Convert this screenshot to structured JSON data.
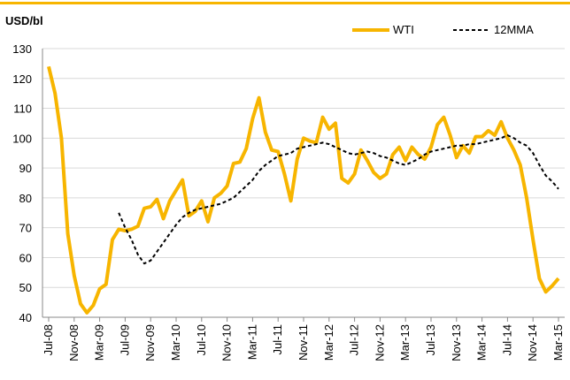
{
  "chart_data": {
    "type": "line",
    "y_label": "USD/bl",
    "categories": [
      "Jul-08",
      null,
      null,
      null,
      "Nov-08",
      null,
      null,
      null,
      "Mar-09",
      null,
      null,
      null,
      "Jul-09",
      null,
      null,
      null,
      "Nov-09",
      null,
      null,
      null,
      "Mar-10",
      null,
      null,
      null,
      "Jul-10",
      null,
      null,
      null,
      "Nov-10",
      null,
      null,
      null,
      "Mar-11",
      null,
      null,
      null,
      "Jul-11",
      null,
      null,
      null,
      "Nov-11",
      null,
      null,
      null,
      "Mar-12",
      null,
      null,
      null,
      "Jul-12",
      null,
      null,
      null,
      "Nov-12",
      null,
      null,
      null,
      "Mar-13",
      null,
      null,
      null,
      "Jul-13",
      null,
      null,
      null,
      "Nov-13",
      null,
      null,
      null,
      "Mar-14",
      null,
      null,
      null,
      "Jul-14",
      null,
      null,
      null,
      "Nov-14",
      null,
      null,
      null,
      "Mar-15"
    ],
    "series": [
      {
        "name": "WTI",
        "color": "#f7b500",
        "dash": false,
        "values": [
          124,
          115,
          100,
          68,
          54,
          44.5,
          41.5,
          44,
          49.5,
          51,
          66,
          69.5,
          69,
          69.5,
          70.5,
          76.5,
          77,
          79.5,
          73,
          79,
          82.5,
          86,
          74,
          75.5,
          79,
          72,
          80,
          81.5,
          84,
          91.5,
          92,
          96.5,
          106.5,
          113.5,
          102,
          96,
          95.5,
          88,
          79,
          93,
          100,
          99,
          98.5,
          107,
          103,
          105,
          86.5,
          85,
          88,
          96,
          92.5,
          88.5,
          86.5,
          88,
          94.5,
          97,
          92.5,
          97,
          94.5,
          93,
          97,
          104.5,
          107,
          101,
          93.5,
          97.5,
          95,
          100.5,
          100.5,
          102.5,
          101,
          105.5,
          100,
          96,
          91,
          80,
          66,
          53,
          48.5,
          50.5,
          53
        ]
      },
      {
        "name": "12MMA",
        "color": "#000000",
        "dash": true,
        "values": [
          null,
          null,
          null,
          null,
          null,
          null,
          null,
          null,
          null,
          null,
          null,
          75,
          70,
          66,
          61,
          58,
          59,
          62,
          65,
          68,
          71,
          73.5,
          75,
          76,
          76.5,
          77,
          77.5,
          78,
          79,
          80,
          82,
          84,
          86,
          89,
          91,
          92.5,
          94,
          94.5,
          95,
          96.5,
          97,
          97.5,
          98,
          98.5,
          98,
          97,
          96,
          95,
          94.5,
          95,
          95.5,
          95,
          94,
          93.5,
          92.5,
          91.5,
          91,
          92,
          93,
          94.5,
          95.5,
          96,
          96.5,
          97,
          97.5,
          97.5,
          98,
          98,
          98.5,
          99,
          99.5,
          100,
          101,
          100,
          98.5,
          97.5,
          95,
          91,
          87.5,
          85.5,
          83
        ]
      }
    ],
    "ylim": [
      40,
      130
    ],
    "yticks": [
      40,
      50,
      60,
      70,
      80,
      90,
      100,
      110,
      120,
      130
    ],
    "grid": true
  }
}
